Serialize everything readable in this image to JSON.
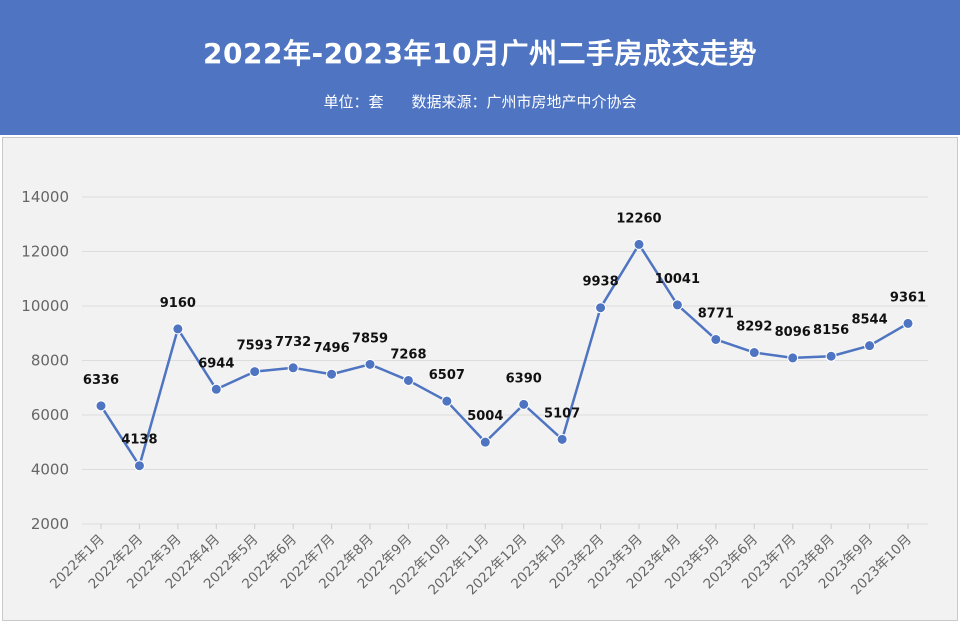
{
  "header": {
    "title": "2022年-2023年10月广州二手房成交走势",
    "unit": "单位：套",
    "source": "数据来源：广州市房地产中介协会"
  },
  "colors": {
    "header_bg": "#4e74c2",
    "line": "#4e74c2",
    "panel_bg": "#f2f2f2"
  },
  "chart_data": {
    "type": "line",
    "title": "2022年-2023年10月广州二手房成交走势",
    "xlabel": "",
    "ylabel": "",
    "ylim": [
      2000,
      14000
    ],
    "yticks": [
      2000,
      4000,
      6000,
      8000,
      10000,
      12000,
      14000
    ],
    "grid": true,
    "categories": [
      "2022年1月",
      "2022年2月",
      "2022年3月",
      "2022年4月",
      "2022年5月",
      "2022年6月",
      "2022年7月",
      "2022年8月",
      "2022年9月",
      "2022年10月",
      "2022年11月",
      "2022年12月",
      "2023年1月",
      "2023年2月",
      "2023年3月",
      "2023年4月",
      "2023年5月",
      "2023年6月",
      "2023年7月",
      "2023年8月",
      "2023年9月",
      "2023年10月"
    ],
    "series": [
      {
        "values": [
          6336,
          4138,
          9160,
          6944,
          7593,
          7732,
          7496,
          7859,
          7268,
          6507,
          5004,
          6390,
          5107,
          9938,
          12260,
          10041,
          8771,
          8292,
          8096,
          8156,
          8544,
          9361
        ]
      }
    ]
  }
}
